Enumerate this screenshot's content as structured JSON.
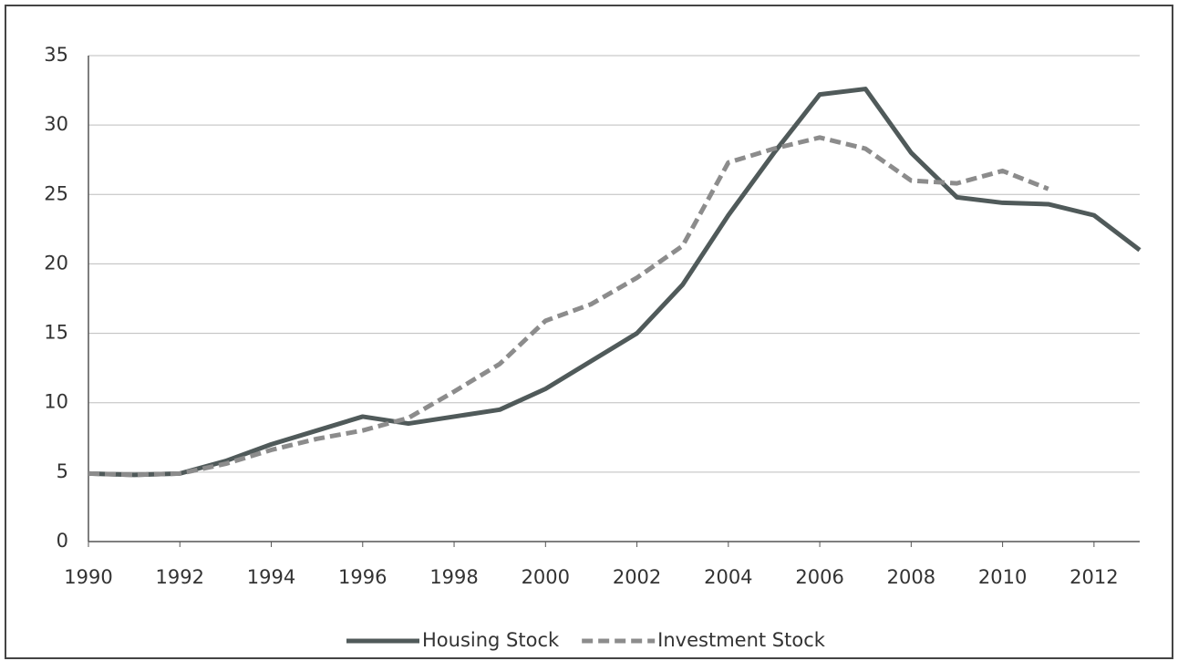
{
  "chart_data": {
    "type": "line",
    "x": [
      1990,
      1991,
      1992,
      1993,
      1994,
      1995,
      1996,
      1997,
      1998,
      1999,
      2000,
      2001,
      2002,
      2003,
      2004,
      2005,
      2006,
      2007,
      2008,
      2009,
      2010,
      2011,
      2012,
      2013
    ],
    "series": [
      {
        "name": "Housing Stock",
        "color": "#505a5a",
        "dashed": false,
        "values": [
          4.9,
          4.8,
          4.9,
          5.8,
          7.0,
          8.0,
          9.0,
          8.5,
          9.0,
          9.5,
          11.0,
          13.0,
          15.0,
          18.5,
          23.5,
          28.0,
          32.2,
          32.6,
          28.0,
          24.8,
          24.4,
          24.3,
          23.5,
          21.0
        ]
      },
      {
        "name": "Investment Stock",
        "color": "#8c8c8c",
        "dashed": true,
        "values": [
          4.9,
          4.8,
          4.9,
          5.6,
          6.6,
          7.4,
          8.0,
          8.9,
          10.8,
          12.8,
          15.9,
          17.1,
          19.0,
          21.3,
          27.3,
          28.3,
          29.1,
          28.3,
          26.0,
          25.8,
          26.7,
          25.4,
          null,
          null
        ]
      }
    ],
    "xlim": [
      1990,
      2013
    ],
    "xticks": [
      1990,
      1992,
      1994,
      1996,
      1998,
      2000,
      2002,
      2004,
      2006,
      2008,
      2010,
      2012
    ],
    "ylim": [
      0,
      35
    ],
    "yticks": [
      0,
      5,
      10,
      15,
      20,
      25,
      30,
      35
    ],
    "grid": true,
    "legend": "bottom"
  }
}
